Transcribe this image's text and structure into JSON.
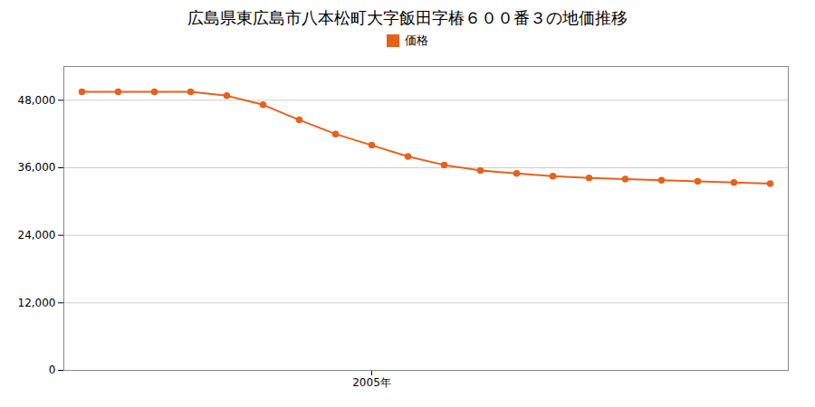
{
  "chart_data": {
    "type": "line",
    "title": "広島県東広島市八本松町大字飯田字椿６００番３の地価推移",
    "x": [
      1997,
      1998,
      1999,
      2000,
      2001,
      2002,
      2003,
      2004,
      2005,
      2006,
      2007,
      2008,
      2009,
      2010,
      2011,
      2012,
      2013,
      2014,
      2015,
      2016
    ],
    "series": [
      {
        "name": "価格",
        "color": "#E8611A",
        "marker": "circle",
        "line_style": "solid",
        "values": [
          49500,
          49500,
          49500,
          49500,
          48800,
          47200,
          44500,
          42000,
          40000,
          38000,
          36500,
          35500,
          35000,
          34500,
          34200,
          34000,
          33800,
          33600,
          33400,
          33200
        ]
      }
    ],
    "xlim": [
      1996.5,
      2016.5
    ],
    "xticks": [
      {
        "value": 2005,
        "label": "2005年"
      }
    ],
    "ylim": [
      0,
      54000
    ],
    "yticks": [
      0,
      {
        "value": 12000,
        "label": "12,000"
      },
      {
        "value": 24000,
        "label": "24,000"
      },
      {
        "value": 36000,
        "label": "36,000"
      },
      {
        "value": 48000,
        "label": "48,000"
      }
    ],
    "grid": "y",
    "legend": "top"
  }
}
